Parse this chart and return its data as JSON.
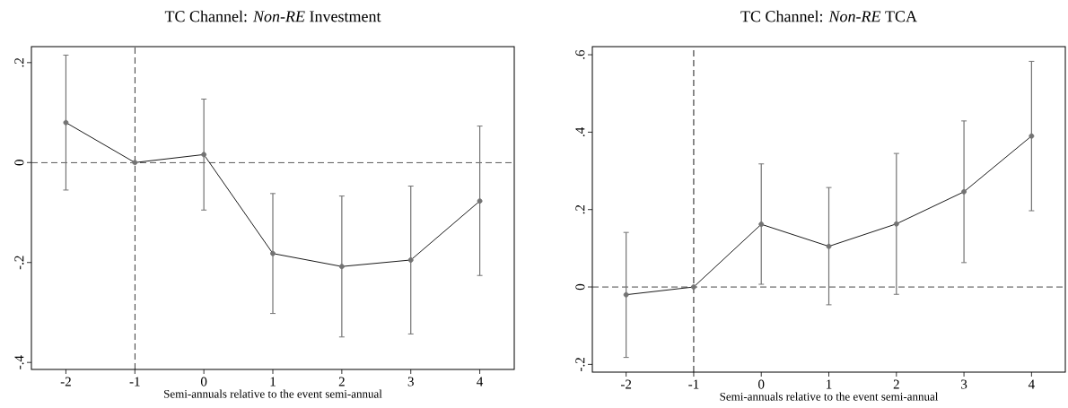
{
  "chart_data": [
    {
      "type": "line",
      "title": "TC Channel: *Non-RE* Investment",
      "xlabel": "Semi-annuals relative to the event semi-annual",
      "x": [
        -2,
        -1,
        0,
        1,
        2,
        3,
        4
      ],
      "series": [
        {
          "color": "#000000",
          "values": [
            0.08,
            0,
            0.016,
            -0.182,
            -0.208,
            -0.195,
            -0.077
          ],
          "errors": [
            [
              -0.055,
              0.215
            ],
            null,
            [
              -0.095,
              0.127
            ],
            [
              -0.302,
              -0.062
            ],
            [
              -0.349,
              -0.067
            ],
            [
              -0.343,
              -0.047
            ],
            [
              -0.226,
              0.073
            ]
          ]
        }
      ],
      "xlim": [
        -2.5,
        4.5
      ],
      "ylim": [
        -0.414,
        0.232
      ],
      "xticks": [
        -2,
        -1,
        0,
        1,
        2,
        3,
        4
      ],
      "yticks": [
        {
          "value": -0.4,
          "label": "-.4"
        },
        {
          "value": -0.2,
          "label": "-.2"
        },
        0,
        {
          "value": 0.2,
          "label": ".2"
        }
      ],
      "ref_lines": [
        {
          "axis": "x",
          "value": -1,
          "line_style": "dashed"
        },
        {
          "axis": "y",
          "value": 0,
          "line_style": "dashed"
        }
      ],
      "marker": "circle",
      "line_style": "solid",
      "grid": false
    },
    {
      "type": "line",
      "title": "TC Channel: *Non-RE* TCA",
      "xlabel": "Semi-annuals relative to the event semi-annual",
      "x": [
        -2,
        -1,
        0,
        1,
        2,
        3,
        4
      ],
      "series": [
        {
          "color": "#000000",
          "values": [
            -0.02,
            0,
            0.162,
            0.105,
            0.163,
            0.246,
            0.39
          ],
          "errors": [
            [
              -0.182,
              0.141
            ],
            null,
            [
              0.007,
              0.318
            ],
            [
              -0.046,
              0.257
            ],
            [
              -0.019,
              0.345
            ],
            [
              0.063,
              0.429
            ],
            [
              0.197,
              0.583
            ]
          ]
        }
      ],
      "xlim": [
        -2.5,
        4.5
      ],
      "ylim": [
        -0.22,
        0.621
      ],
      "xticks": [
        -2,
        -1,
        0,
        1,
        2,
        3,
        4
      ],
      "yticks": [
        {
          "value": -0.2,
          "label": "-.2"
        },
        0,
        {
          "value": 0.2,
          "label": ".2"
        },
        {
          "value": 0.4,
          "label": ".4"
        },
        {
          "value": 0.6,
          "label": ".6"
        }
      ],
      "ref_lines": [
        {
          "axis": "x",
          "value": -1,
          "line_style": "dashed"
        },
        {
          "axis": "y",
          "value": 0,
          "line_style": "dashed"
        }
      ],
      "marker": "circle",
      "line_style": "solid",
      "grid": false
    }
  ]
}
